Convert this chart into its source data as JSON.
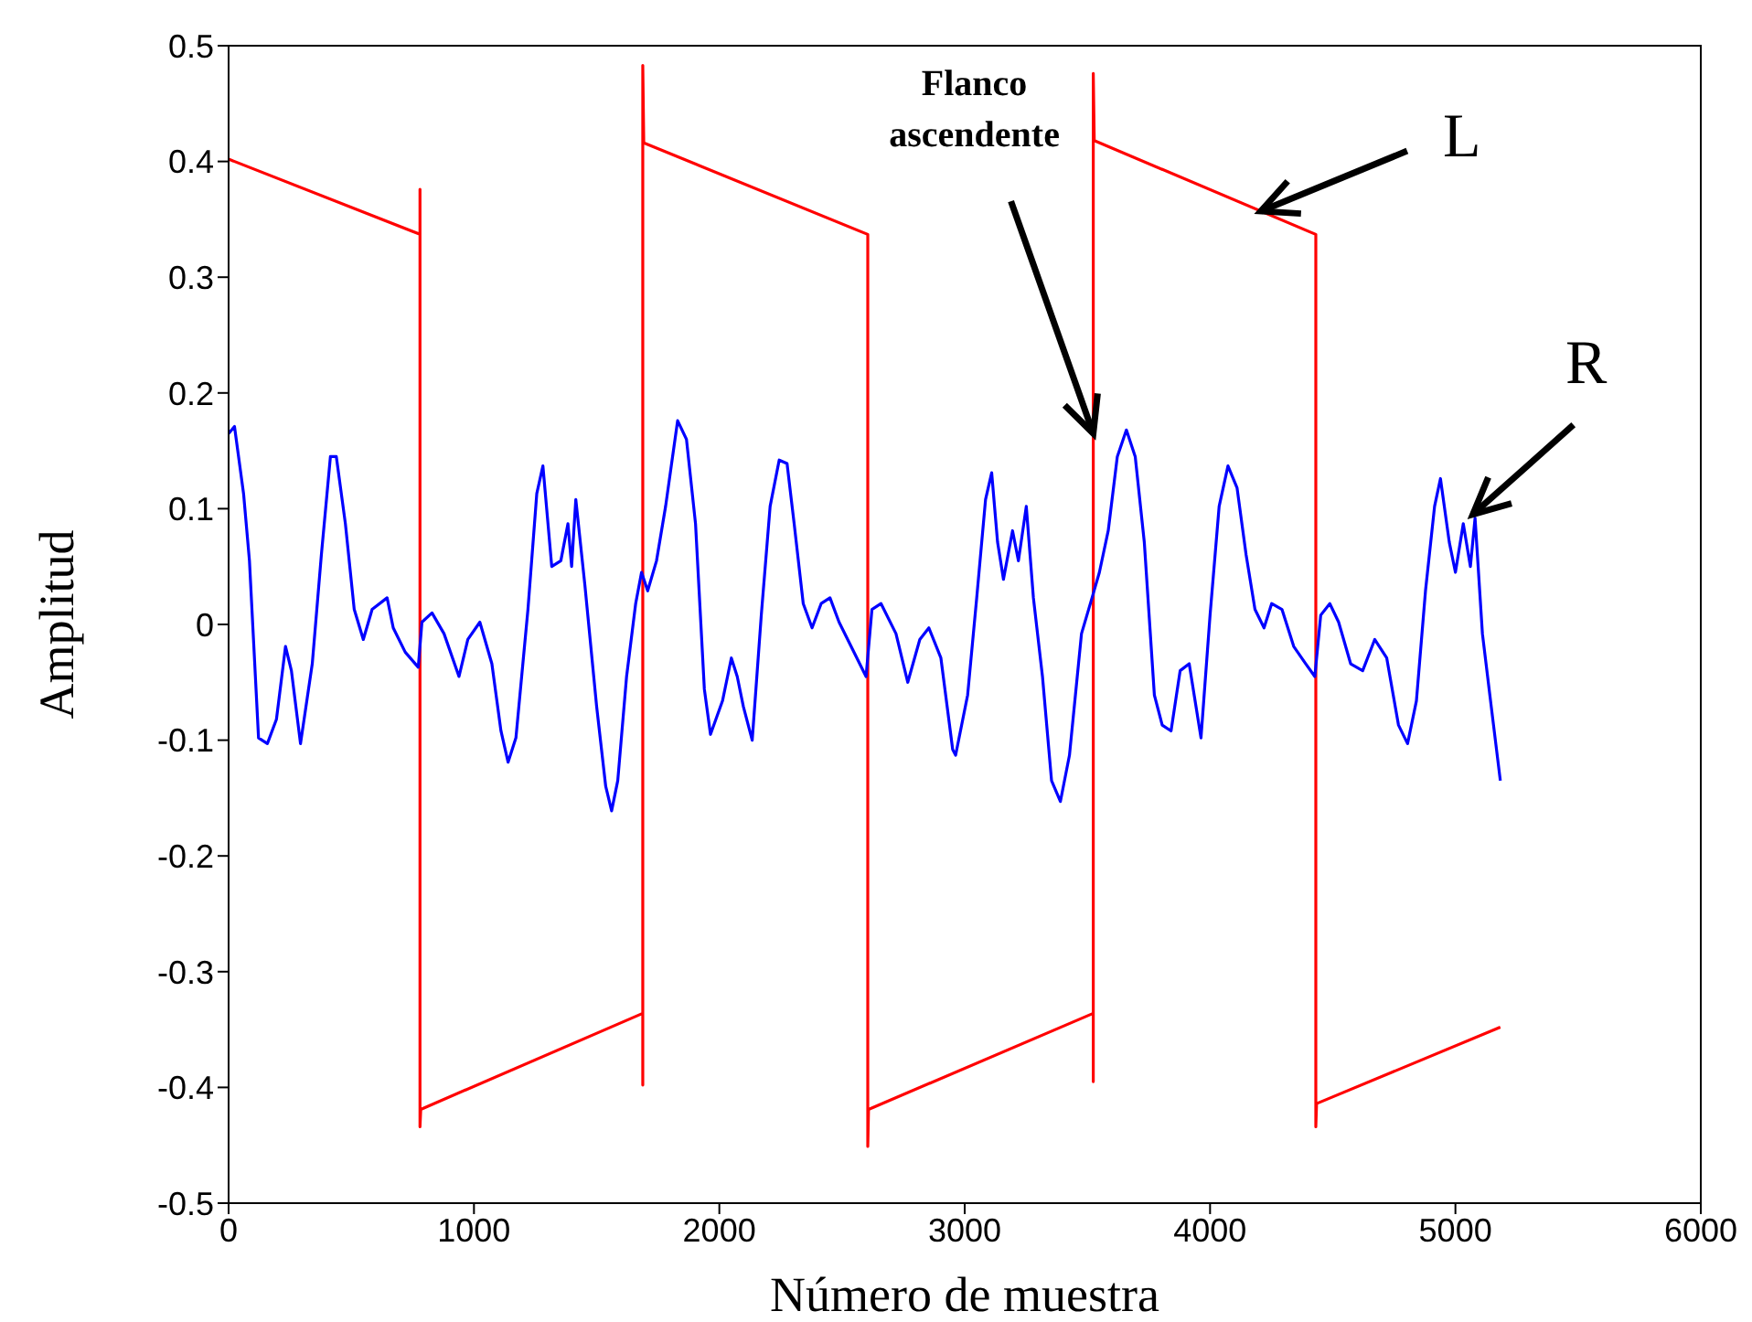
{
  "chart_data": {
    "type": "line",
    "xlabel": "Número de muestra",
    "ylabel": "Amplitud",
    "xlim": [
      0,
      6000
    ],
    "xticks": [
      0,
      1000,
      2000,
      3000,
      4000,
      5000,
      6000
    ],
    "ylim": [
      -0.5,
      0.5
    ],
    "yticks": [
      -0.5,
      -0.4,
      -0.3,
      -0.2,
      -0.1,
      0,
      0.1,
      0.2,
      0.3,
      0.4,
      0.5
    ],
    "grid": false,
    "legend": false,
    "marker": "none",
    "line_style": "solid",
    "series": [
      {
        "color": "#ff0000",
        "x": [
          0,
          780,
          780,
          780,
          783,
          1688,
          1688,
          1688,
          1692,
          2605,
          2605,
          2608,
          3524,
          3524,
          3524,
          3528,
          4431,
          4431,
          4434,
          5183
        ],
        "values": [
          0.402,
          0.337,
          0.376,
          -0.434,
          -0.419,
          -0.336,
          -0.398,
          0.483,
          0.416,
          0.337,
          -0.451,
          -0.419,
          -0.336,
          -0.395,
          0.476,
          0.418,
          0.337,
          -0.434,
          -0.414,
          -0.348
        ]
      },
      {
        "color": "#0000ff",
        "x": [
          0,
          24,
          61,
          85,
          122,
          158,
          195,
          232,
          256,
          293,
          341,
          378,
          415,
          439,
          476,
          512,
          549,
          585,
          646,
          671,
          720,
          773,
          788,
          829,
          878,
          939,
          975,
          1024,
          1073,
          1110,
          1139,
          1171,
          1220,
          1256,
          1281,
          1317,
          1354,
          1383,
          1398,
          1415,
          1452,
          1500,
          1537,
          1561,
          1586,
          1622,
          1659,
          1683,
          1708,
          1744,
          1781,
          1830,
          1866,
          1903,
          1939,
          1964,
          2013,
          2049,
          2073,
          2098,
          2134,
          2171,
          2207,
          2244,
          2276,
          2305,
          2342,
          2378,
          2415,
          2451,
          2488,
          2537,
          2598,
          2622,
          2659,
          2720,
          2768,
          2817,
          2854,
          2903,
          2951,
          2963,
          3012,
          3049,
          3085,
          3110,
          3134,
          3158,
          3195,
          3219,
          3251,
          3280,
          3317,
          3354,
          3390,
          3427,
          3476,
          3519,
          3549,
          3585,
          3622,
          3659,
          3695,
          3732,
          3773,
          3805,
          3841,
          3878,
          3915,
          3963,
          4000,
          4037,
          4073,
          4110,
          4147,
          4183,
          4220,
          4251,
          4293,
          4341,
          4390,
          4427,
          4451,
          4488,
          4524,
          4573,
          4622,
          4671,
          4720,
          4768,
          4805,
          4841,
          4878,
          4915,
          4939,
          4975,
          5000,
          5032,
          5061,
          5080,
          5110,
          5146,
          5183
        ],
        "values": [
          0.165,
          0.171,
          0.113,
          0.055,
          -0.098,
          -0.103,
          -0.082,
          -0.019,
          -0.04,
          -0.103,
          -0.034,
          0.06,
          0.145,
          0.145,
          0.087,
          0.013,
          -0.013,
          0.013,
          0.023,
          -0.003,
          -0.024,
          -0.037,
          0.002,
          0.01,
          -0.008,
          -0.045,
          -0.013,
          0.002,
          -0.034,
          -0.092,
          -0.119,
          -0.098,
          0.013,
          0.113,
          0.137,
          0.05,
          0.055,
          0.087,
          0.05,
          0.108,
          0.034,
          -0.071,
          -0.14,
          -0.161,
          -0.135,
          -0.045,
          0.018,
          0.045,
          0.029,
          0.055,
          0.102,
          0.176,
          0.16,
          0.087,
          -0.056,
          -0.095,
          -0.066,
          -0.029,
          -0.045,
          -0.071,
          -0.1,
          0.008,
          0.102,
          0.142,
          0.139,
          0.087,
          0.018,
          -0.003,
          0.018,
          0.023,
          0.002,
          -0.019,
          -0.045,
          0.013,
          0.018,
          -0.008,
          -0.05,
          -0.013,
          -0.003,
          -0.029,
          -0.108,
          -0.113,
          -0.061,
          0.023,
          0.108,
          0.131,
          0.071,
          0.039,
          0.081,
          0.055,
          0.102,
          0.023,
          -0.045,
          -0.135,
          -0.153,
          -0.113,
          -0.008,
          0.023,
          0.045,
          0.081,
          0.145,
          0.168,
          0.145,
          0.071,
          -0.061,
          -0.087,
          -0.092,
          -0.04,
          -0.034,
          -0.098,
          0.008,
          0.102,
          0.137,
          0.118,
          0.06,
          0.013,
          -0.003,
          0.018,
          0.013,
          -0.019,
          -0.034,
          -0.045,
          0.008,
          0.018,
          0.002,
          -0.034,
          -0.04,
          -0.013,
          -0.029,
          -0.087,
          -0.103,
          -0.066,
          0.029,
          0.102,
          0.126,
          0.071,
          0.045,
          0.087,
          0.05,
          0.092,
          -0.008,
          -0.071,
          -0.135
        ]
      }
    ],
    "annotations": [
      {
        "text": "Flanco ascendente",
        "x": 3524,
        "y": 0.165
      },
      {
        "text": "L",
        "x": 4207,
        "y": 0.357
      },
      {
        "text": "R",
        "x": 5071,
        "y": 0.095
      }
    ]
  }
}
